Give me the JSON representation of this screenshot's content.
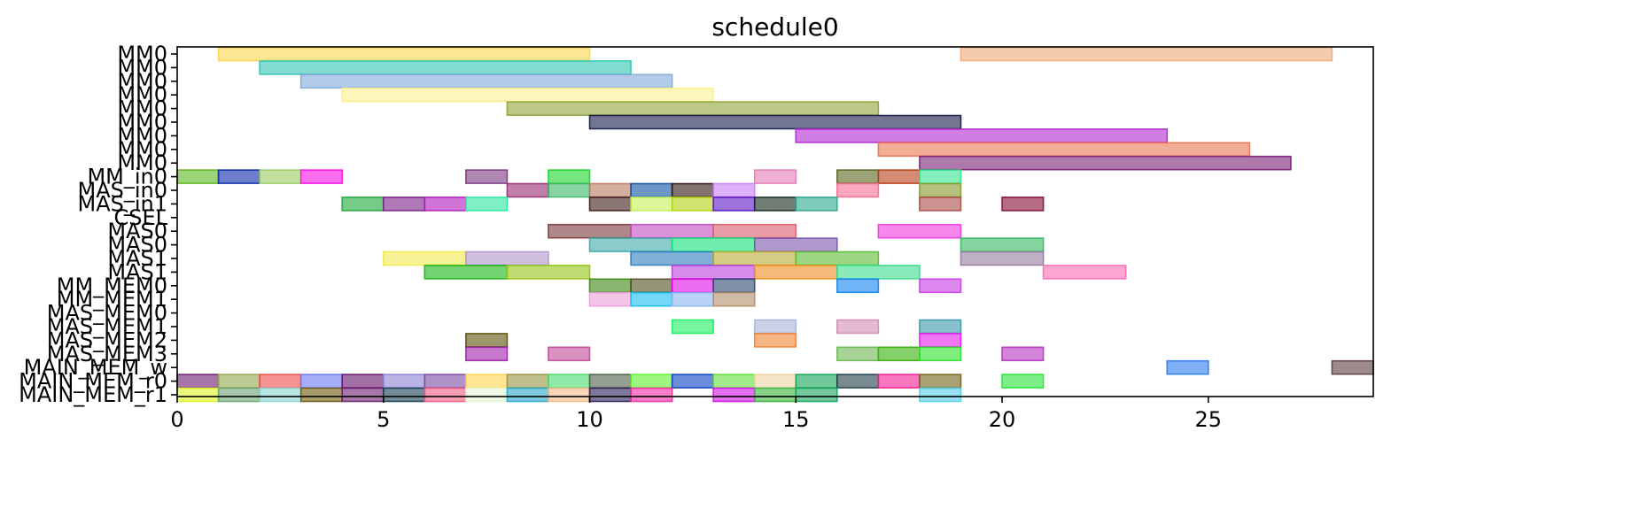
{
  "chart_data": {
    "type": "gantt",
    "title": "schedule0",
    "xlabel": "",
    "ylabel": "",
    "xlim": [
      0,
      29
    ],
    "x_ticks": [
      0,
      5,
      10,
      15,
      20,
      25
    ],
    "grid": false,
    "legend": "none",
    "rows": [
      "MM0",
      "MM0",
      "MM0",
      "MM0",
      "MM0",
      "MM0",
      "MM0",
      "MM0",
      "MM0",
      "MM_in0",
      "MAS_in0",
      "MAS_in1",
      "CSEL",
      "MAS0",
      "MAS0",
      "MAS1",
      "MAS1",
      "MM_MEM0",
      "MM_MEM1",
      "MAS_MEM0",
      "MAS_MEM1",
      "MAS_MEM2",
      "MAS_MEM3",
      "MAIN_MEM_w",
      "MAIN_MEM_r0",
      "MAIN_MEM_r1"
    ],
    "tasks": [
      {
        "row": 0,
        "start": 1,
        "end": 10,
        "color": "#fbd64a"
      },
      {
        "row": 0,
        "start": 19,
        "end": 28,
        "color": "#eea878"
      },
      {
        "row": 1,
        "start": 2,
        "end": 11,
        "color": "#2ec4b0"
      },
      {
        "row": 2,
        "start": 3,
        "end": 12,
        "color": "#80a8d8"
      },
      {
        "row": 3,
        "start": 4,
        "end": 13,
        "color": "#fcf08c"
      },
      {
        "row": 4,
        "start": 8,
        "end": 17,
        "color": "#8ea338"
      },
      {
        "row": 5,
        "start": 10,
        "end": 19,
        "color": "#161a48"
      },
      {
        "row": 6,
        "start": 15,
        "end": 24,
        "color": "#b028d0"
      },
      {
        "row": 7,
        "start": 17,
        "end": 26,
        "color": "#ea7650"
      },
      {
        "row": 8,
        "start": 18,
        "end": 27,
        "color": "#7a1e74"
      },
      {
        "row": 9,
        "start": 0,
        "end": 1,
        "color": "#5cb81c"
      },
      {
        "row": 9,
        "start": 1,
        "end": 2,
        "color": "#0c2aa8"
      },
      {
        "row": 9,
        "start": 2,
        "end": 3,
        "color": "#9ccc62"
      },
      {
        "row": 9,
        "start": 3,
        "end": 4,
        "color": "#fa10e6"
      },
      {
        "row": 9,
        "start": 7,
        "end": 8,
        "color": "#7c3880"
      },
      {
        "row": 9,
        "start": 9,
        "end": 10,
        "color": "#18d42a"
      },
      {
        "row": 9,
        "start": 14,
        "end": 15,
        "color": "#e67cb8"
      },
      {
        "row": 9,
        "start": 16,
        "end": 17,
        "color": "#58641e"
      },
      {
        "row": 9,
        "start": 17,
        "end": 18,
        "color": "#b83e18"
      },
      {
        "row": 9,
        "start": 18,
        "end": 19,
        "color": "#32e48c"
      },
      {
        "row": 10,
        "start": 8,
        "end": 9,
        "color": "#9a2a70"
      },
      {
        "row": 10,
        "start": 9,
        "end": 10,
        "color": "#3cb868"
      },
      {
        "row": 10,
        "start": 10,
        "end": 11,
        "color": "#b87a60"
      },
      {
        "row": 10,
        "start": 11,
        "end": 12,
        "color": "#0c4ea0"
      },
      {
        "row": 10,
        "start": 12,
        "end": 13,
        "color": "#2e1410"
      },
      {
        "row": 10,
        "start": 13,
        "end": 14,
        "color": "#c87ef6"
      },
      {
        "row": 10,
        "start": 16,
        "end": 17,
        "color": "#f66e92"
      },
      {
        "row": 10,
        "start": 18,
        "end": 19,
        "color": "#829a26"
      },
      {
        "row": 11,
        "start": 4,
        "end": 5,
        "color": "#1ca83a"
      },
      {
        "row": 11,
        "start": 5,
        "end": 6,
        "color": "#7a1e86"
      },
      {
        "row": 11,
        "start": 6,
        "end": 7,
        "color": "#b218be"
      },
      {
        "row": 11,
        "start": 7,
        "end": 8,
        "color": "#2ae6a0"
      },
      {
        "row": 11,
        "start": 10,
        "end": 11,
        "color": "#3e1a1a"
      },
      {
        "row": 11,
        "start": 11,
        "end": 12,
        "color": "#c4f054"
      },
      {
        "row": 11,
        "start": 12,
        "end": 13,
        "color": "#b4d20c"
      },
      {
        "row": 11,
        "start": 13,
        "end": 14,
        "color": "#5a14c4"
      },
      {
        "row": 11,
        "start": 14,
        "end": 15,
        "color": "#142a1c"
      },
      {
        "row": 11,
        "start": 15,
        "end": 16,
        "color": "#2aa88e"
      },
      {
        "row": 11,
        "start": 18,
        "end": 19,
        "color": "#aa4a46"
      },
      {
        "row": 11,
        "start": 20,
        "end": 21,
        "color": "#860a30"
      },
      {
        "row": 13,
        "start": 9,
        "end": 11,
        "color": "#7a3a3a"
      },
      {
        "row": 13,
        "start": 11,
        "end": 13,
        "color": "#c44ac0"
      },
      {
        "row": 13,
        "start": 13,
        "end": 15,
        "color": "#dc5c6c"
      },
      {
        "row": 13,
        "start": 17,
        "end": 19,
        "color": "#f038e0"
      },
      {
        "row": 14,
        "start": 10,
        "end": 12,
        "color": "#3ea8a8"
      },
      {
        "row": 14,
        "start": 12,
        "end": 14,
        "color": "#10e27a"
      },
      {
        "row": 14,
        "start": 14,
        "end": 16,
        "color": "#7a54aa"
      },
      {
        "row": 14,
        "start": 19,
        "end": 21,
        "color": "#34b860"
      },
      {
        "row": 15,
        "start": 5,
        "end": 7,
        "color": "#f2ea4c"
      },
      {
        "row": 15,
        "start": 7,
        "end": 9,
        "color": "#b294cc"
      },
      {
        "row": 15,
        "start": 11,
        "end": 13,
        "color": "#2c7cbc"
      },
      {
        "row": 15,
        "start": 13,
        "end": 15,
        "color": "#b8aa34"
      },
      {
        "row": 15,
        "start": 15,
        "end": 17,
        "color": "#5cbc32"
      },
      {
        "row": 15,
        "start": 19,
        "end": 21,
        "color": "#947a9e"
      },
      {
        "row": 16,
        "start": 6,
        "end": 8,
        "color": "#18b410"
      },
      {
        "row": 16,
        "start": 8,
        "end": 10,
        "color": "#92c414"
      },
      {
        "row": 16,
        "start": 12,
        "end": 14,
        "color": "#ba3ede"
      },
      {
        "row": 16,
        "start": 14,
        "end": 16,
        "color": "#ee8c1e"
      },
      {
        "row": 16,
        "start": 16,
        "end": 18,
        "color": "#3cdc8c"
      },
      {
        "row": 16,
        "start": 21,
        "end": 23,
        "color": "#fa6cb2"
      },
      {
        "row": 17,
        "start": 10,
        "end": 11,
        "color": "#3a8610"
      },
      {
        "row": 17,
        "start": 11,
        "end": 12,
        "color": "#4e4c20"
      },
      {
        "row": 17,
        "start": 12,
        "end": 13,
        "color": "#e00ae6"
      },
      {
        "row": 17,
        "start": 13,
        "end": 14,
        "color": "#2a466c"
      },
      {
        "row": 17,
        "start": 16,
        "end": 17,
        "color": "#1484f2"
      },
      {
        "row": 17,
        "start": 18,
        "end": 19,
        "color": "#ca3ae6"
      },
      {
        "row": 18,
        "start": 10,
        "end": 11,
        "color": "#ec9cd6"
      },
      {
        "row": 18,
        "start": 11,
        "end": 12,
        "color": "#18bcee"
      },
      {
        "row": 18,
        "start": 12,
        "end": 13,
        "color": "#8ab4f4"
      },
      {
        "row": 18,
        "start": 13,
        "end": 14,
        "color": "#b0906a"
      },
      {
        "row": 20,
        "start": 12,
        "end": 13,
        "color": "#1aee62"
      },
      {
        "row": 20,
        "start": 14,
        "end": 15,
        "color": "#a8b2da"
      },
      {
        "row": 20,
        "start": 16,
        "end": 17,
        "color": "#d08cb0"
      },
      {
        "row": 20,
        "start": 18,
        "end": 19,
        "color": "#3a98aa"
      },
      {
        "row": 21,
        "start": 7,
        "end": 8,
        "color": "#5a500a"
      },
      {
        "row": 21,
        "start": 14,
        "end": 15,
        "color": "#ee8434"
      },
      {
        "row": 21,
        "start": 18,
        "end": 19,
        "color": "#e41aec"
      },
      {
        "row": 22,
        "start": 7,
        "end": 8,
        "color": "#a01eaa"
      },
      {
        "row": 22,
        "start": 9,
        "end": 10,
        "color": "#c24a98"
      },
      {
        "row": 22,
        "start": 16,
        "end": 17,
        "color": "#6cb850"
      },
      {
        "row": 22,
        "start": 17,
        "end": 18,
        "color": "#36b008"
      },
      {
        "row": 22,
        "start": 18,
        "end": 19,
        "color": "#2ae22a"
      },
      {
        "row": 22,
        "start": 20,
        "end": 21,
        "color": "#b434c2"
      },
      {
        "row": 23,
        "start": 24,
        "end": 25,
        "color": "#2c7cf2"
      },
      {
        "row": 23,
        "start": 28,
        "end": 29,
        "color": "#5c3e40"
      },
      {
        "row": 24,
        "start": 0,
        "end": 1,
        "color": "#6a1a72"
      },
      {
        "row": 24,
        "start": 1,
        "end": 2,
        "color": "#94a84c"
      },
      {
        "row": 24,
        "start": 2,
        "end": 3,
        "color": "#ee4a4a"
      },
      {
        "row": 24,
        "start": 3,
        "end": 4,
        "color": "#6a78f4"
      },
      {
        "row": 24,
        "start": 4,
        "end": 5,
        "color": "#66106a"
      },
      {
        "row": 24,
        "start": 5,
        "end": 6,
        "color": "#8a82d0"
      },
      {
        "row": 24,
        "start": 6,
        "end": 7,
        "color": "#7a4aa2"
      },
      {
        "row": 24,
        "start": 7,
        "end": 8,
        "color": "#fcd44e"
      },
      {
        "row": 24,
        "start": 8,
        "end": 9,
        "color": "#9a9444"
      },
      {
        "row": 24,
        "start": 9,
        "end": 10,
        "color": "#48da6c"
      },
      {
        "row": 24,
        "start": 10,
        "end": 11,
        "color": "#4e5e4a"
      },
      {
        "row": 24,
        "start": 11,
        "end": 12,
        "color": "#5cf42c"
      },
      {
        "row": 24,
        "start": 12,
        "end": 13,
        "color": "#0c40c4"
      },
      {
        "row": 24,
        "start": 13,
        "end": 14,
        "color": "#62e03a"
      },
      {
        "row": 24,
        "start": 14,
        "end": 15,
        "color": "#eed2a0"
      },
      {
        "row": 24,
        "start": 15,
        "end": 16,
        "color": "#12a456"
      },
      {
        "row": 24,
        "start": 16,
        "end": 17,
        "color": "#203e48"
      },
      {
        "row": 24,
        "start": 17,
        "end": 18,
        "color": "#f01c92"
      },
      {
        "row": 24,
        "start": 18,
        "end": 19,
        "color": "#726416"
      },
      {
        "row": 24,
        "start": 20,
        "end": 21,
        "color": "#28e438"
      },
      {
        "row": 25,
        "start": 0,
        "end": 1,
        "color": "#dcf620"
      },
      {
        "row": 25,
        "start": 1,
        "end": 2,
        "color": "#6aa272"
      },
      {
        "row": 25,
        "start": 2,
        "end": 3,
        "color": "#8ad6ce"
      },
      {
        "row": 25,
        "start": 3,
        "end": 4,
        "color": "#6e5a0c"
      },
      {
        "row": 25,
        "start": 4,
        "end": 5,
        "color": "#6e1c70"
      },
      {
        "row": 25,
        "start": 5,
        "end": 6,
        "color": "#163e54"
      },
      {
        "row": 25,
        "start": 6,
        "end": 7,
        "color": "#f05c80"
      },
      {
        "row": 25,
        "start": 7,
        "end": 8,
        "color": "#e2f6d4"
      },
      {
        "row": 25,
        "start": 8,
        "end": 9,
        "color": "#28a8cc"
      },
      {
        "row": 25,
        "start": 9,
        "end": 10,
        "color": "#f4b888"
      },
      {
        "row": 25,
        "start": 10,
        "end": 11,
        "color": "#2c1e58"
      },
      {
        "row": 25,
        "start": 11,
        "end": 12,
        "color": "#f42ca6"
      },
      {
        "row": 25,
        "start": 13,
        "end": 14,
        "color": "#d012e6"
      },
      {
        "row": 25,
        "start": 14,
        "end": 15,
        "color": "#38b43a"
      },
      {
        "row": 25,
        "start": 15,
        "end": 16,
        "color": "#16a45e"
      },
      {
        "row": 25,
        "start": 18,
        "end": 19,
        "color": "#54cee8"
      }
    ]
  }
}
